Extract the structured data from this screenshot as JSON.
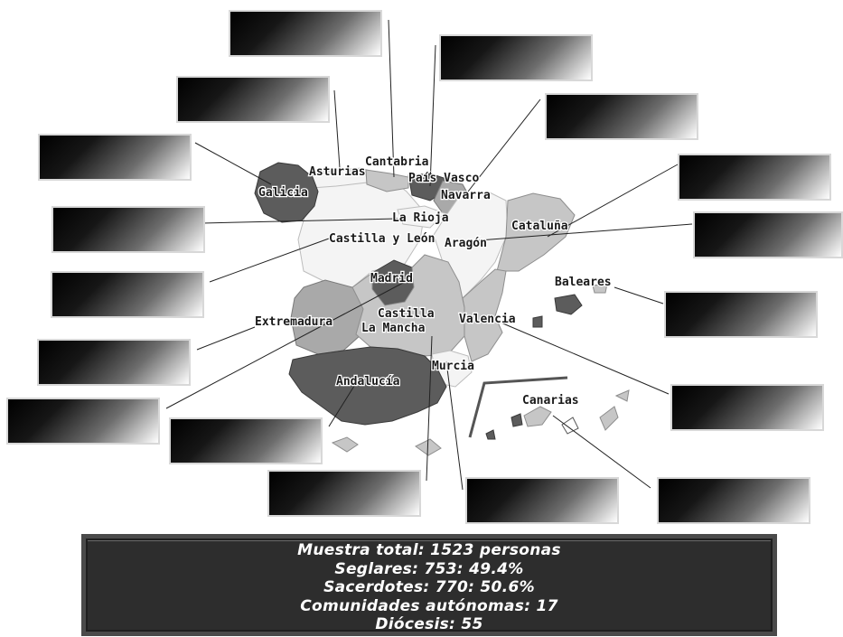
{
  "regions": {
    "galicia": "Galicia",
    "asturias": "Asturias",
    "cantabria": "Cantabria",
    "pais_vasco": "País Vasco",
    "navarra": "Navarra",
    "la_rioja": "La Rioja",
    "castilla_leon": "Castilla y León",
    "aragon": "Aragón",
    "cataluna": "Cataluña",
    "baleares": "Baleares",
    "madrid": "Madrid",
    "extremadura": "Extremadura",
    "castilla_la_mancha_1": "Castilla",
    "castilla_la_mancha_2": "La Mancha",
    "valencia": "Valencia",
    "murcia": "Murcia",
    "andalucia": "Andalucía",
    "canarias": "Canarias"
  },
  "summary": {
    "total": "Muestra total: 1523 personas",
    "seglares": "Seglares: 753: 49.4%",
    "sacerdotes": "Sacerdotes: 770: 50.6%",
    "comunidades": "Comunidades autónomas: 17",
    "diocesis": "Diócesis: 55"
  },
  "colors": {
    "dark": "#5c5c5c",
    "medium": "#a9a9a9",
    "light": "#c6c6c6",
    "pale": "#f4f4f4",
    "summary_bg": "#2d2d2d"
  }
}
